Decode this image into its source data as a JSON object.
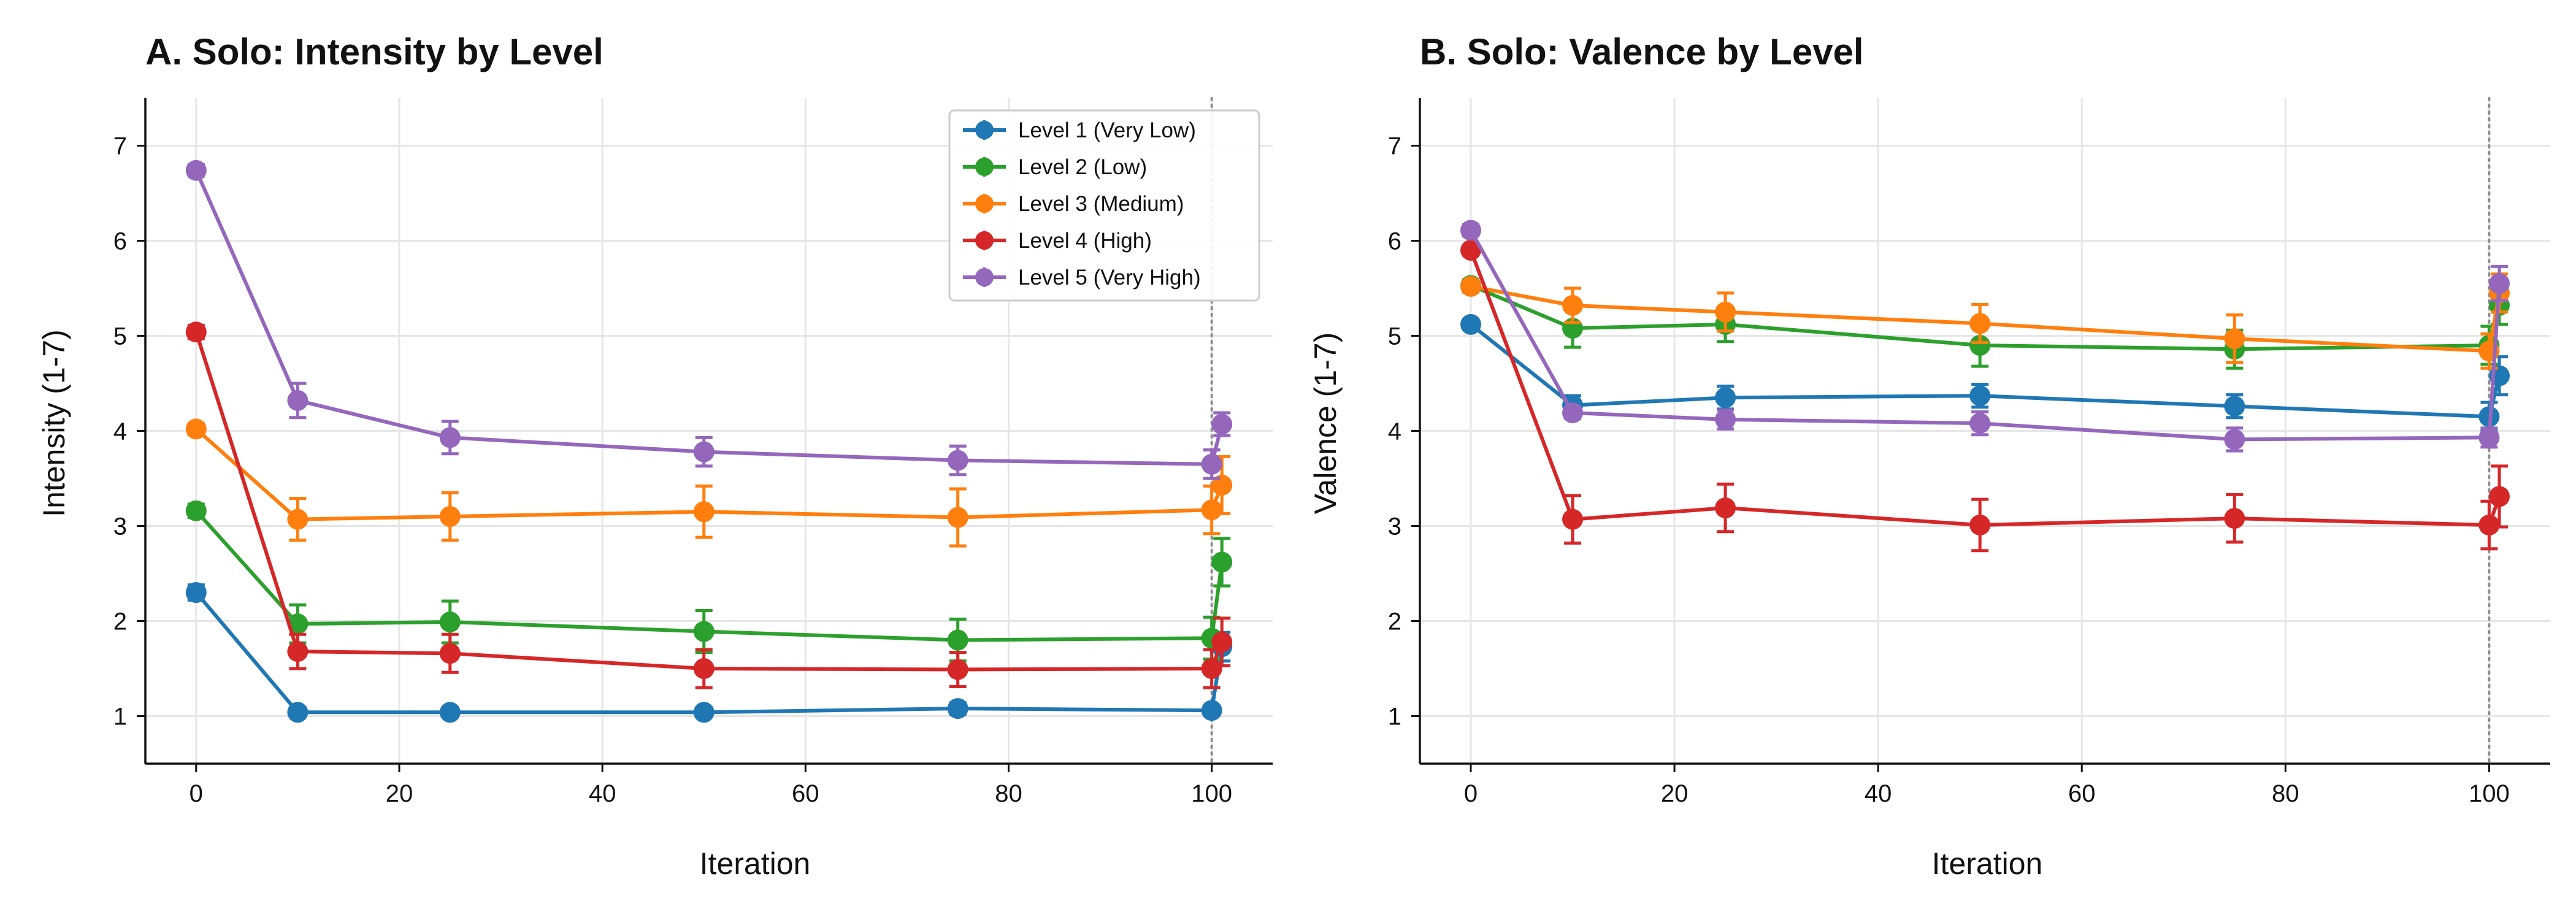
{
  "chart_data": [
    {
      "type": "line",
      "title": "A. Solo: Intensity by Level",
      "xlabel": "Iteration",
      "ylabel": "Intensity (1-7)",
      "xlim": [
        -5,
        106
      ],
      "ylim": [
        0.5,
        7.5
      ],
      "xticks": [
        0,
        20,
        40,
        60,
        80,
        100
      ],
      "yticks": [
        1,
        2,
        3,
        4,
        5,
        6,
        7
      ],
      "grid": true,
      "reference_line_x": 100,
      "legend": "top-right",
      "x": [
        0,
        10,
        25,
        50,
        75,
        100
      ],
      "series": [
        {
          "name": "Level 1 (Very Low)",
          "color": "#1f77b4",
          "values": [
            2.3,
            1.04,
            1.04,
            1.04,
            1.08,
            1.06
          ],
          "errors": [
            0.08,
            0.05,
            0.05,
            0.05,
            0.06,
            0.05
          ],
          "final": {
            "x": 101,
            "value": 1.73,
            "error": 0.15
          }
        },
        {
          "name": "Level 2 (Low)",
          "color": "#2ca02c",
          "values": [
            3.16,
            1.97,
            1.99,
            1.89,
            1.8,
            1.82
          ],
          "errors": [
            0.07,
            0.2,
            0.22,
            0.22,
            0.22,
            0.22
          ],
          "final": {
            "x": 101,
            "value": 2.62,
            "error": 0.25
          }
        },
        {
          "name": "Level 3 (Medium)",
          "color": "#ff7f0e",
          "values": [
            4.02,
            3.07,
            3.1,
            3.15,
            3.09,
            3.17
          ],
          "errors": [
            0.06,
            0.22,
            0.25,
            0.27,
            0.3,
            0.25
          ],
          "final": {
            "x": 101,
            "value": 3.43,
            "error": 0.3
          }
        },
        {
          "name": "Level 4 (High)",
          "color": "#d62728",
          "values": [
            5.04,
            1.68,
            1.66,
            1.5,
            1.49,
            1.5
          ],
          "errors": [
            0.07,
            0.18,
            0.2,
            0.2,
            0.18,
            0.2
          ],
          "final": {
            "x": 101,
            "value": 1.78,
            "error": 0.25
          }
        },
        {
          "name": "Level 5 (Very High)",
          "color": "#9467bd",
          "values": [
            6.74,
            4.32,
            3.93,
            3.78,
            3.69,
            3.65
          ],
          "errors": [
            0.06,
            0.18,
            0.17,
            0.15,
            0.15,
            0.15
          ],
          "final": {
            "x": 101,
            "value": 4.07,
            "error": 0.12
          }
        }
      ]
    },
    {
      "type": "line",
      "title": "B. Solo: Valence by Level",
      "xlabel": "Iteration",
      "ylabel": "Valence (1-7)",
      "xlim": [
        -5,
        106
      ],
      "ylim": [
        0.5,
        7.5
      ],
      "xticks": [
        0,
        20,
        40,
        60,
        80,
        100
      ],
      "yticks": [
        1,
        2,
        3,
        4,
        5,
        6,
        7
      ],
      "grid": true,
      "reference_line_x": 100,
      "x": [
        0,
        10,
        25,
        50,
        75,
        100
      ],
      "series": [
        {
          "name": "Level 1 (Very Low)",
          "color": "#1f77b4",
          "values": [
            5.12,
            4.27,
            4.35,
            4.37,
            4.26,
            4.15
          ],
          "errors": [
            0.05,
            0.1,
            0.12,
            0.12,
            0.12,
            0.15
          ],
          "final": {
            "x": 101,
            "value": 4.58,
            "error": 0.2
          }
        },
        {
          "name": "Level 2 (Low)",
          "color": "#2ca02c",
          "values": [
            5.53,
            5.08,
            5.12,
            4.9,
            4.86,
            4.9
          ],
          "errors": [
            0.06,
            0.2,
            0.18,
            0.22,
            0.2,
            0.2
          ],
          "final": {
            "x": 101,
            "value": 5.32,
            "error": 0.2
          }
        },
        {
          "name": "Level 3 (Medium)",
          "color": "#ff7f0e",
          "values": [
            5.52,
            5.32,
            5.25,
            5.13,
            4.97,
            4.84
          ],
          "errors": [
            0.06,
            0.18,
            0.2,
            0.2,
            0.25,
            0.18
          ],
          "final": {
            "x": 101,
            "value": 5.45,
            "error": 0.2
          }
        },
        {
          "name": "Level 4 (High)",
          "color": "#d62728",
          "values": [
            5.9,
            3.07,
            3.19,
            3.01,
            3.08,
            3.01
          ],
          "errors": [
            0.05,
            0.25,
            0.25,
            0.27,
            0.25,
            0.25
          ],
          "final": {
            "x": 101,
            "value": 3.31,
            "error": 0.32
          }
        },
        {
          "name": "Level 5 (Very High)",
          "color": "#9467bd",
          "values": [
            6.11,
            4.19,
            4.12,
            4.08,
            3.91,
            3.93
          ],
          "errors": [
            0.06,
            0.06,
            0.1,
            0.12,
            0.12,
            0.1
          ],
          "final": {
            "x": 101,
            "value": 5.55,
            "error": 0.18
          }
        }
      ]
    }
  ]
}
